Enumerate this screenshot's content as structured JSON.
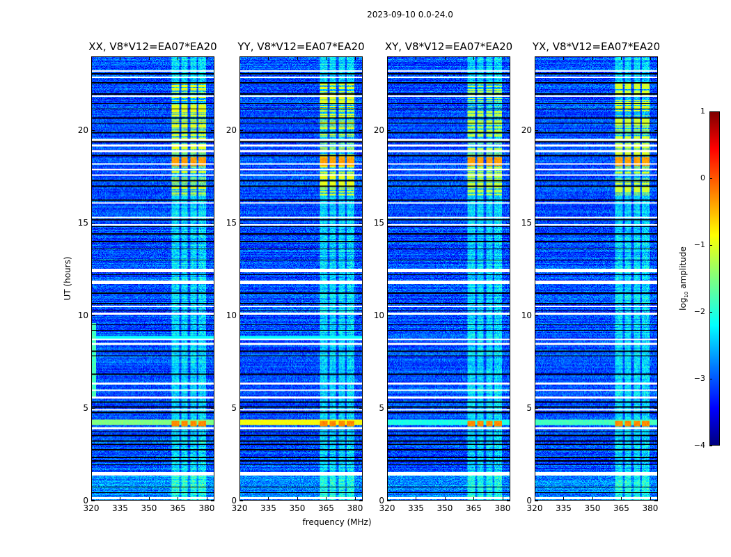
{
  "chart_data": {
    "type": "heatmap",
    "title": "2023-09-10 0.0-24.0",
    "xlabel": "frequency (MHz)",
    "ylabel": "UT (hours)",
    "xlim": [
      320,
      384
    ],
    "ylim": [
      0,
      24
    ],
    "xticks": [
      320,
      335,
      350,
      365,
      380
    ],
    "yticks": [
      0,
      5,
      10,
      15,
      20
    ],
    "panels": [
      {
        "title": "XX, V8*V12=EA07*EA20",
        "band_4h_level": -1.5,
        "rfi_peak_level": -0.3,
        "rfi_evening_level": -1.0
      },
      {
        "title": "YY, V8*V12=EA07*EA20",
        "band_4h_level": -0.9,
        "rfi_peak_level": -0.3,
        "rfi_evening_level": -1.0
      },
      {
        "title": "XY, V8*V12=EA07*EA20",
        "band_4h_level": -2.0,
        "rfi_peak_level": -0.3,
        "rfi_evening_level": -1.2
      },
      {
        "title": "YX, V8*V12=EA07*EA20",
        "band_4h_level": -1.8,
        "rfi_peak_level": -0.3,
        "rfi_evening_level": -1.1
      }
    ],
    "background_level": -3.0,
    "rfi_freq_range": [
      362,
      380
    ],
    "rfi_subband_gaps": [
      366.5,
      371,
      375.5
    ],
    "rfi_strong_periods": [
      [
        16.5,
        22.6
      ],
      [
        18.1,
        18.6
      ]
    ],
    "rfi_peak_period": [
      4.0,
      4.3
    ],
    "flagged_times": [
      0.1,
      1.35,
      1.45,
      3.9,
      4.9,
      5.55,
      5.95,
      6.3,
      8.45,
      8.7,
      10.1,
      10.5,
      11.75,
      11.85,
      12.4,
      12.5,
      14.9,
      15.3,
      16.1,
      17.6,
      17.9,
      18.2,
      18.9,
      19.2,
      19.5,
      21.9,
      22.9,
      23.25
    ],
    "zero_times": [
      0.4,
      0.7,
      1.9,
      2.1,
      2.3,
      2.7,
      3.0,
      3.2,
      3.5,
      3.7,
      4.75,
      5.05,
      5.3,
      6.8,
      7.8,
      8.05,
      9.2,
      9.5,
      10.25,
      10.65,
      11.2,
      12.2,
      13.0,
      13.6,
      14.0,
      14.4,
      14.8,
      15.2,
      16.25,
      17.0,
      17.3,
      18.65,
      19.4,
      19.9,
      20.4,
      20.7,
      21.2,
      21.5,
      22.0,
      22.6,
      23.1
    ],
    "colorbar": {
      "label": "log10 amplitude",
      "label_main": "log",
      "label_sub": "10",
      "label_rest": " amplitude",
      "range": [
        -4,
        1
      ],
      "ticks": [
        "1",
        "0",
        "−1",
        "−2",
        "−3",
        "−4"
      ],
      "tick_values": [
        1,
        0,
        -1,
        -2,
        -3,
        -4
      ],
      "colormap": "jet"
    }
  }
}
